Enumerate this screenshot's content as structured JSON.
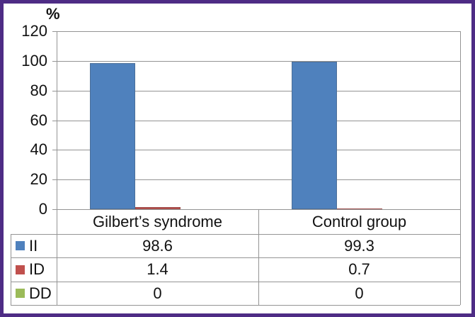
{
  "frame": {
    "border_color": "#4E2C85",
    "background_color": "#FFFFFF"
  },
  "chart_data": {
    "type": "bar",
    "title": "",
    "xlabel": "",
    "ylabel": "%",
    "y_axis_title": "%",
    "categories": [
      "Gilbert’s syndrome",
      "Control group"
    ],
    "series": [
      {
        "name": "II",
        "color": "#4F81BD",
        "values": [
          98.6,
          99.3
        ]
      },
      {
        "name": "ID",
        "color": "#C0504D",
        "values": [
          1.4,
          0.7
        ]
      },
      {
        "name": "DD",
        "color": "#9BBB59",
        "values": [
          0,
          0
        ]
      }
    ],
    "ylim": [
      0,
      120
    ],
    "yticks": [
      0,
      20,
      40,
      60,
      80,
      100,
      120
    ],
    "grid": "horizontal",
    "gridline_color": "#949494",
    "legend_position": "data-table-left-column",
    "data_table_shown": true
  }
}
